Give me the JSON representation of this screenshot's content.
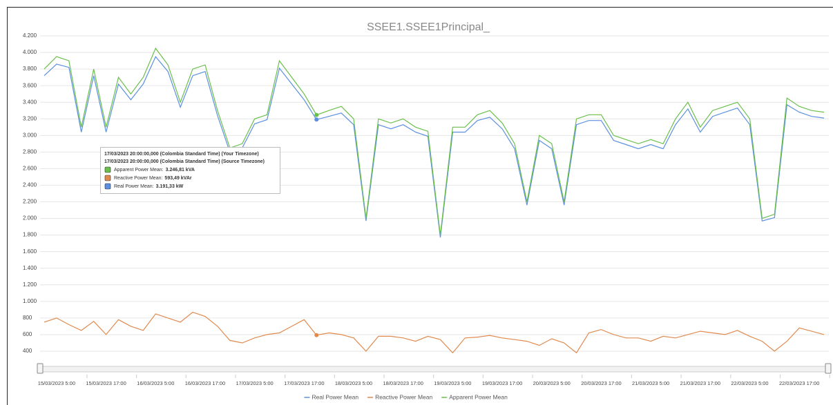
{
  "chart_data": {
    "type": "line",
    "title": "SSEE1.SSEE1Principal_",
    "x": [
      "2023-03-15 02:00",
      "2023-03-15 05:00",
      "2023-03-15 08:00",
      "2023-03-15 11:00",
      "2023-03-15 14:00",
      "2023-03-15 17:00",
      "2023-03-15 20:00",
      "2023-03-15 23:00",
      "2023-03-16 02:00",
      "2023-03-16 05:00",
      "2023-03-16 08:00",
      "2023-03-16 11:00",
      "2023-03-16 14:00",
      "2023-03-16 17:00",
      "2023-03-16 20:00",
      "2023-03-16 23:00",
      "2023-03-17 02:00",
      "2023-03-17 05:00",
      "2023-03-17 08:00",
      "2023-03-17 11:00",
      "2023-03-17 14:00",
      "2023-03-17 17:00",
      "2023-03-17 20:00",
      "2023-03-17 23:00",
      "2023-03-18 02:00",
      "2023-03-18 05:00",
      "2023-03-18 08:00",
      "2023-03-18 11:00",
      "2023-03-18 14:00",
      "2023-03-18 17:00",
      "2023-03-18 20:00",
      "2023-03-18 23:00",
      "2023-03-19 02:00",
      "2023-03-19 05:00",
      "2023-03-19 08:00",
      "2023-03-19 11:00",
      "2023-03-19 14:00",
      "2023-03-19 17:00",
      "2023-03-19 20:00",
      "2023-03-19 23:00",
      "2023-03-20 02:00",
      "2023-03-20 05:00",
      "2023-03-20 08:00",
      "2023-03-20 11:00",
      "2023-03-20 14:00",
      "2023-03-20 17:00",
      "2023-03-20 20:00",
      "2023-03-20 23:00",
      "2023-03-21 02:00",
      "2023-03-21 05:00",
      "2023-03-21 08:00",
      "2023-03-21 11:00",
      "2023-03-21 14:00",
      "2023-03-21 17:00",
      "2023-03-21 20:00",
      "2023-03-21 23:00",
      "2023-03-22 02:00",
      "2023-03-22 05:00",
      "2023-03-22 08:00",
      "2023-03-22 11:00",
      "2023-03-22 14:00",
      "2023-03-22 17:00",
      "2023-03-22 20:00",
      "2023-03-22 23:00"
    ],
    "series": [
      {
        "name": "Real Power Mean",
        "color": "#5b8fe0",
        "values": [
          3720,
          3860,
          3820,
          3040,
          3720,
          3040,
          3620,
          3430,
          3620,
          3950,
          3770,
          3340,
          3720,
          3770,
          3240,
          2800,
          2850,
          3140,
          3190,
          3810,
          3620,
          3430,
          3191.33,
          3230,
          3270,
          3130,
          1970,
          3130,
          3080,
          3130,
          3040,
          2990,
          1770,
          3040,
          3040,
          3180,
          3220,
          3080,
          2840,
          2160,
          2940,
          2840,
          2160,
          3130,
          3180,
          3180,
          2940,
          2890,
          2840,
          2890,
          2840,
          3130,
          3320,
          3040,
          3230,
          3280,
          3330,
          3130,
          1970,
          2010,
          3370,
          3280,
          3230,
          3210
        ]
      },
      {
        "name": "Reactive Power Mean",
        "color": "#e08a4e",
        "values": [
          750,
          800,
          720,
          650,
          760,
          600,
          780,
          700,
          650,
          850,
          800,
          750,
          870,
          820,
          700,
          530,
          500,
          560,
          600,
          620,
          700,
          780,
          593.49,
          620,
          600,
          560,
          400,
          580,
          580,
          560,
          520,
          580,
          540,
          380,
          560,
          570,
          590,
          560,
          540,
          520,
          470,
          550,
          500,
          380,
          620,
          660,
          600,
          560,
          560,
          520,
          580,
          560,
          600,
          640,
          620,
          600,
          650,
          580,
          520,
          400,
          520,
          680,
          640,
          600
        ]
      },
      {
        "name": "Apparent Power Mean",
        "color": "#6abf4b",
        "values": [
          3800,
          3950,
          3900,
          3100,
          3800,
          3100,
          3700,
          3500,
          3700,
          4050,
          3850,
          3400,
          3800,
          3850,
          3300,
          2850,
          2900,
          3200,
          3250,
          3900,
          3700,
          3500,
          3246.81,
          3300,
          3350,
          3200,
          2000,
          3200,
          3150,
          3200,
          3100,
          3050,
          1800,
          3100,
          3100,
          3250,
          3300,
          3150,
          2900,
          2200,
          3000,
          2900,
          2200,
          3200,
          3250,
          3250,
          3000,
          2950,
          2900,
          2950,
          2900,
          3200,
          3400,
          3100,
          3300,
          3350,
          3400,
          3200,
          2000,
          2050,
          3450,
          3350,
          3300,
          3280
        ]
      }
    ],
    "xlim": [
      "2023-03-15 01:00",
      "2023-03-23 00:10"
    ],
    "xticks": [
      {
        "value": "2023-03-15 05:00",
        "label": "15/03/2023 5:00"
      },
      {
        "value": "2023-03-15 17:00",
        "label": "15/03/2023 17:00"
      },
      {
        "value": "2023-03-16 05:00",
        "label": "16/03/2023 5:00"
      },
      {
        "value": "2023-03-16 17:00",
        "label": "16/03/2023 17:00"
      },
      {
        "value": "2023-03-17 05:00",
        "label": "17/03/2023 5:00"
      },
      {
        "value": "2023-03-17 17:00",
        "label": "17/03/2023 17:00"
      },
      {
        "value": "2023-03-18 05:00",
        "label": "18/03/2023 5:00"
      },
      {
        "value": "2023-03-18 17:00",
        "label": "18/03/2023 17:00"
      },
      {
        "value": "2023-03-19 05:00",
        "label": "19/03/2023 5:00"
      },
      {
        "value": "2023-03-19 17:00",
        "label": "19/03/2023 17:00"
      },
      {
        "value": "2023-03-20 05:00",
        "label": "20/03/2023 5:00"
      },
      {
        "value": "2023-03-20 17:00",
        "label": "20/03/2023 17:00"
      },
      {
        "value": "2023-03-21 05:00",
        "label": "21/03/2023 5:00"
      },
      {
        "value": "2023-03-21 17:00",
        "label": "21/03/2023 17:00"
      },
      {
        "value": "2023-03-22 05:00",
        "label": "22/03/2023 5:00"
      },
      {
        "value": "2023-03-22 17:00",
        "label": "22/03/2023 17:00"
      }
    ],
    "ylim": [
      400,
      4200
    ],
    "yticks": [
      400,
      600,
      800,
      {
        "value": 1000,
        "label": "1.000"
      },
      {
        "value": 1200,
        "label": "1.200"
      },
      {
        "value": 1400,
        "label": "1.400"
      },
      {
        "value": 1600,
        "label": "1.600"
      },
      {
        "value": 1800,
        "label": "1.800"
      },
      {
        "value": 2000,
        "label": "2.000"
      },
      {
        "value": 2200,
        "label": "2.200"
      },
      {
        "value": 2400,
        "label": "2.400"
      },
      {
        "value": 2600,
        "label": "2.600"
      },
      {
        "value": 2800,
        "label": "2.800"
      },
      {
        "value": 3000,
        "label": "3.000"
      },
      {
        "value": 3200,
        "label": "3.200"
      },
      {
        "value": 3400,
        "label": "3.400"
      },
      {
        "value": 3600,
        "label": "3.600"
      },
      {
        "value": 3800,
        "label": "3.800"
      },
      {
        "value": 4000,
        "label": "4.000"
      },
      {
        "value": 4200,
        "label": "4.200"
      }
    ],
    "grid": true,
    "legend": "bottom",
    "tooltip": {
      "lines": [
        "17/03/2023 20:00:00,000 (Colombia Standard Time) (Your Timezone)",
        "17/03/2023 20:00:00,000 (Colombia Standard Time) (Source Timezone)"
      ],
      "index": 22,
      "items": [
        {
          "series": 2,
          "label": "Apparent Power Mean:",
          "value": "3.246,81 kVA"
        },
        {
          "series": 1,
          "label": "Reactive Power Mean:",
          "value": "593,49 kVAr"
        },
        {
          "series": 0,
          "label": "Real Power Mean:",
          "value": "3.191,33 kW"
        }
      ]
    }
  }
}
